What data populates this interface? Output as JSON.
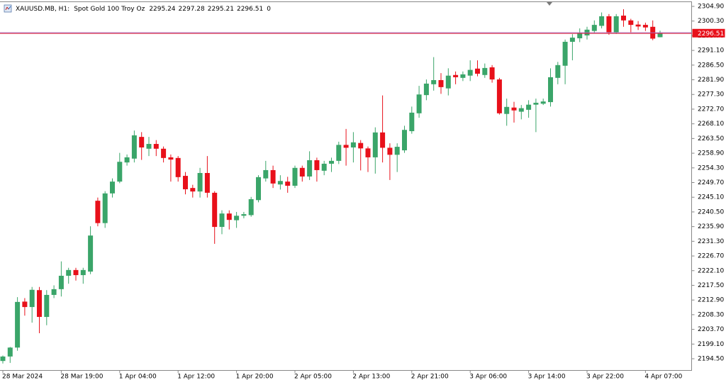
{
  "chart_data": {
    "type": "candlestick",
    "title": "XAUUSD.MB, H1:",
    "subtitle": "Spot Gold 100 Troy Oz",
    "spread": 0,
    "up_color": "#3aa569",
    "down_color": "#e8101a",
    "price_line_color": "#b45aa0",
    "grid": false,
    "categories": [
      "28 Mar 2024",
      null,
      null,
      null,
      null,
      null,
      null,
      null,
      "28 Mar 19:00",
      null,
      null,
      null,
      null,
      null,
      null,
      null,
      "1 Apr 04:00",
      null,
      null,
      null,
      null,
      null,
      null,
      null,
      "1 Apr 12:00",
      null,
      null,
      null,
      null,
      null,
      null,
      null,
      "1 Apr 20:00",
      null,
      null,
      null,
      null,
      null,
      null,
      null,
      "2 Apr 05:00",
      null,
      null,
      null,
      null,
      null,
      null,
      null,
      "2 Apr 13:00",
      null,
      null,
      null,
      null,
      null,
      null,
      null,
      "2 Apr 21:00",
      null,
      null,
      null,
      null,
      null,
      null,
      null,
      "3 Apr 06:00",
      null,
      null,
      null,
      null,
      null,
      null,
      null,
      "3 Apr 14:00",
      null,
      null,
      null,
      null,
      null,
      null,
      null,
      "3 Apr 22:00",
      null,
      null,
      null,
      null,
      null,
      null,
      null,
      "4 Apr 07:00",
      null,
      null
    ],
    "open": [
      2193.8,
      2195.2,
      2198.0,
      2212.4,
      2210.7,
      2216.0,
      2207.6,
      2214.5,
      2216.3,
      2220.5,
      2222.3,
      2220.7,
      2221.8,
      2244.0,
      2237.0,
      2246.3,
      2250.0,
      2256.0,
      2257.2,
      2264.0,
      2260.3,
      2261.8,
      2260.3,
      2257.6,
      2257.4,
      2251.8,
      2248.0,
      2246.9,
      2252.7,
      2246.5,
      2235.8,
      2240.0,
      2237.9,
      2239.3,
      2239.5,
      2244.2,
      2251.0,
      2253.6,
      2249.1,
      2250.0,
      2248.7,
      2254.3,
      2251.6,
      2256.7,
      2253.4,
      2255.6,
      2256.5,
      2261.5,
      2260.7,
      2262.1,
      2260.4,
      2257.6,
      2265.4,
      2260.6,
      2258.4,
      2259.8,
      2265.8,
      2271.4,
      2277.1,
      2280.5,
      2281.8,
      2279.2,
      2283.4,
      2282.5,
      2283.2,
      2285.4,
      2283.4,
      2285.8,
      2282.0,
      2271.2,
      2273.2,
      2271.9,
      2272.5,
      2274.1,
      2274.4,
      2274.9,
      2282.5,
      2286.3,
      2293.8,
      2294.9,
      2295.8,
      2297.2,
      2298.8,
      2301.8,
      2296.8,
      2302.0,
      2300.5,
      2299.2,
      2299.1,
      2298.5,
      2295.24
    ],
    "high": [
      2195.5,
      2198.2,
      2213.8,
      2213.5,
      2217.0,
      2217.0,
      2216.0,
      2217.5,
      2225.0,
      2223.0,
      2223.0,
      2223.0,
      2236.0,
      2245.0,
      2247.0,
      2251.0,
      2259.0,
      2258.5,
      2266.0,
      2265.5,
      2264.0,
      2263.0,
      2261.0,
      2258.5,
      2258.0,
      2253.0,
      2249.0,
      2254.3,
      2258.0,
      2247.0,
      2241.0,
      2241.0,
      2240.5,
      2240.5,
      2245.2,
      2252.0,
      2256.5,
      2255.0,
      2252.0,
      2251.5,
      2255.0,
      2255.0,
      2259.5,
      2257.5,
      2256.5,
      2257.5,
      2262.5,
      2266.5,
      2265.5,
      2263.0,
      2261.0,
      2267.0,
      2277.0,
      2262.0,
      2262.0,
      2267.5,
      2273.5,
      2280.0,
      2282.0,
      2289.0,
      2284.0,
      2285.5,
      2284.5,
      2284.5,
      2288.0,
      2288.0,
      2287.0,
      2286.5,
      2282.5,
      2276.0,
      2275.0,
      2274.0,
      2275.5,
      2276.0,
      2276.0,
      2285.5,
      2287.5,
      2294.5,
      2296.2,
      2298.0,
      2298.5,
      2300.5,
      2303.0,
      2302.5,
      2302.5,
      2304.0,
      2301.0,
      2300.3,
      2299.8,
      2300.5,
      2297.28
    ],
    "low": [
      2193.0,
      2193.2,
      2197.0,
      2208.0,
      2205.8,
      2202.5,
      2205.0,
      2213.5,
      2214.0,
      2218.0,
      2219.0,
      2218.0,
      2221.0,
      2236.0,
      2235.5,
      2245.0,
      2249.5,
      2255.0,
      2256.0,
      2256.8,
      2258.0,
      2258.0,
      2256.0,
      2250.0,
      2250.0,
      2246.0,
      2245.0,
      2245.0,
      2245.0,
      2230.5,
      2233.5,
      2235.0,
      2235.5,
      2238.5,
      2239.0,
      2243.5,
      2250.0,
      2248.0,
      2247.5,
      2246.5,
      2248.0,
      2250.0,
      2250.5,
      2250.0,
      2252.0,
      2253.0,
      2255.5,
      2255.0,
      2256.0,
      2253.5,
      2253.0,
      2252.5,
      2256.0,
      2250.5,
      2253.0,
      2259.0,
      2265.0,
      2270.0,
      2275.5,
      2278.5,
      2277.5,
      2277.0,
      2280.5,
      2281.5,
      2281.5,
      2283.0,
      2282.5,
      2281.0,
      2271.0,
      2267.5,
      2268.5,
      2269.5,
      2270.0,
      2265.5,
      2274.0,
      2273.5,
      2280.5,
      2280.5,
      2288.0,
      2293.7,
      2294.5,
      2296.5,
      2298.0,
      2296.0,
      2296.3,
      2298.5,
      2296.8,
      2297.5,
      2297.2,
      2294.3,
      2295.21
    ],
    "close": [
      2195.2,
      2198.0,
      2212.3,
      2210.7,
      2216.1,
      2207.6,
      2214.5,
      2216.3,
      2220.5,
      2222.3,
      2220.7,
      2222.3,
      2233.1,
      2237.0,
      2246.3,
      2250.0,
      2256.2,
      2257.6,
      2264.5,
      2260.7,
      2261.8,
      2260.3,
      2257.4,
      2256.9,
      2251.4,
      2247.6,
      2246.9,
      2252.7,
      2246.5,
      2235.8,
      2240.0,
      2238.0,
      2239.3,
      2239.8,
      2244.5,
      2251.4,
      2253.6,
      2249.4,
      2250.2,
      2248.7,
      2254.3,
      2251.6,
      2256.7,
      2253.6,
      2255.6,
      2256.5,
      2261.5,
      2260.6,
      2262.3,
      2260.4,
      2257.6,
      2265.4,
      2260.6,
      2258.4,
      2260.9,
      2266.2,
      2271.6,
      2277.3,
      2280.7,
      2281.8,
      2279.6,
      2283.2,
      2282.7,
      2283.6,
      2285.0,
      2283.8,
      2285.6,
      2282.0,
      2271.4,
      2273.4,
      2272.3,
      2273.0,
      2274.1,
      2274.7,
      2275.1,
      2282.7,
      2286.5,
      2293.8,
      2295.1,
      2296.5,
      2297.6,
      2299.1,
      2301.8,
      2296.8,
      2301.8,
      2300.5,
      2299.1,
      2298.6,
      2298.3,
      2294.8,
      2296.51
    ],
    "ylim": [
      2190.95,
      2306.23
    ],
    "yticks": [
      {
        "value": 2194.5,
        "label": "2194.50"
      },
      {
        "value": 2199.1,
        "label": "2199.10"
      },
      {
        "value": 2203.7,
        "label": "2203.70"
      },
      {
        "value": 2208.3,
        "label": "2208.30"
      },
      {
        "value": 2212.9,
        "label": "2212.90"
      },
      {
        "value": 2217.5,
        "label": "2217.50"
      },
      {
        "value": 2222.1,
        "label": "2222.10"
      },
      {
        "value": 2226.7,
        "label": "2226.70"
      },
      {
        "value": 2231.3,
        "label": "2231.30"
      },
      {
        "value": 2235.9,
        "label": "2235.90"
      },
      {
        "value": 2240.5,
        "label": "2240.50"
      },
      {
        "value": 2245.1,
        "label": "2245.10"
      },
      {
        "value": 2249.7,
        "label": "2249.70"
      },
      {
        "value": 2254.3,
        "label": "2254.30"
      },
      {
        "value": 2258.9,
        "label": "2258.90"
      },
      {
        "value": 2263.5,
        "label": "2263.50"
      },
      {
        "value": 2268.1,
        "label": "2268.10"
      },
      {
        "value": 2272.7,
        "label": "2272.70"
      },
      {
        "value": 2277.3,
        "label": "2277.30"
      },
      {
        "value": 2281.9,
        "label": "2281.90"
      },
      {
        "value": 2286.5,
        "label": "2286.50"
      },
      {
        "value": 2291.1,
        "label": "2291.10"
      },
      {
        "value": 2295.7,
        "label": "2295.70"
      },
      {
        "value": 2300.3,
        "label": "2300.30"
      },
      {
        "value": 2304.9,
        "label": "2304.90"
      }
    ]
  }
}
